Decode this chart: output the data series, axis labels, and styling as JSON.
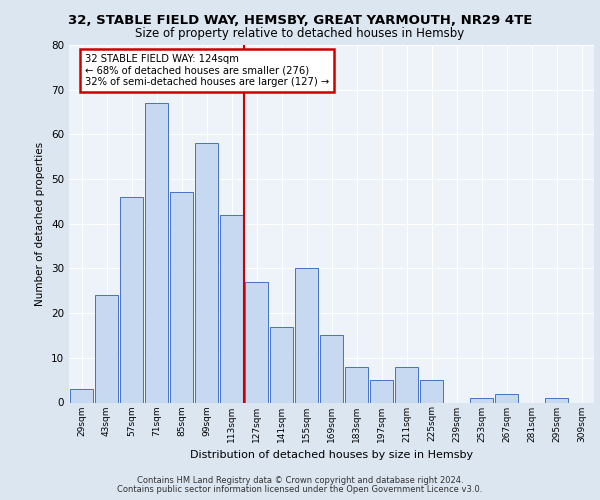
{
  "title1": "32, STABLE FIELD WAY, HEMSBY, GREAT YARMOUTH, NR29 4TE",
  "title2": "Size of property relative to detached houses in Hemsby",
  "xlabel": "Distribution of detached houses by size in Hemsby",
  "ylabel": "Number of detached properties",
  "categories": [
    "29sqm",
    "43sqm",
    "57sqm",
    "71sqm",
    "85sqm",
    "99sqm",
    "113sqm",
    "127sqm",
    "141sqm",
    "155sqm",
    "169sqm",
    "183sqm",
    "197sqm",
    "211sqm",
    "225sqm",
    "239sqm",
    "253sqm",
    "267sqm",
    "281sqm",
    "295sqm",
    "309sqm"
  ],
  "values": [
    3,
    24,
    46,
    67,
    47,
    58,
    42,
    27,
    17,
    30,
    15,
    8,
    5,
    8,
    5,
    0,
    1,
    2,
    0,
    1,
    0
  ],
  "bar_color": "#c6d9f0",
  "bar_edge_color": "#4472c4",
  "vline_color": "#cc0000",
  "annotation_text": "32 STABLE FIELD WAY: 124sqm\n← 68% of detached houses are smaller (276)\n32% of semi-detached houses are larger (127) →",
  "annotation_box_color": "#cc0000",
  "annotation_bg": "#ffffff",
  "ylim": [
    0,
    80
  ],
  "yticks": [
    0,
    10,
    20,
    30,
    40,
    50,
    60,
    70,
    80
  ],
  "bg_color": "#dce6f1",
  "plot_bg": "#eef3f9",
  "footer1": "Contains HM Land Registry data © Crown copyright and database right 2024.",
  "footer2": "Contains public sector information licensed under the Open Government Licence v3.0."
}
